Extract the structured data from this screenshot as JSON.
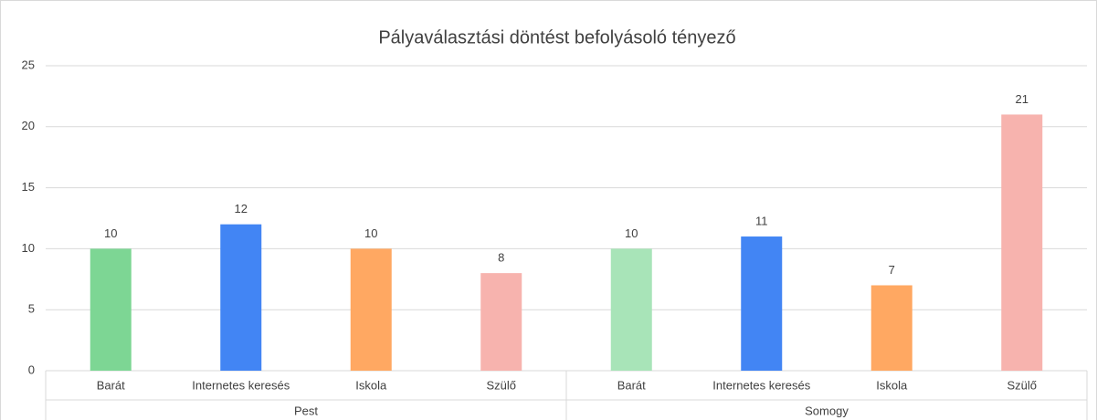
{
  "chart_data": {
    "type": "bar",
    "title": "Pályaválasztási döntést befolyásoló tényező",
    "groups": [
      {
        "name": "Pest",
        "categories": [
          "Barát",
          "Internetes keresés",
          "Iskola",
          "Szülő"
        ],
        "values": [
          10,
          12,
          10,
          8
        ],
        "colors": [
          "#7dd694",
          "#4285f4",
          "#ffa862",
          "#f7b3ae"
        ]
      },
      {
        "name": "Somogy",
        "categories": [
          "Barát",
          "Internetes keresés",
          "Iskola",
          "Szülő"
        ],
        "values": [
          10,
          11,
          7,
          21
        ],
        "colors": [
          "#a8e4b8",
          "#4285f4",
          "#ffa862",
          "#f7b3ae"
        ]
      }
    ],
    "ylim": [
      0,
      25
    ],
    "yticks": [
      0,
      5,
      10,
      15,
      20,
      25
    ],
    "grid": true
  }
}
